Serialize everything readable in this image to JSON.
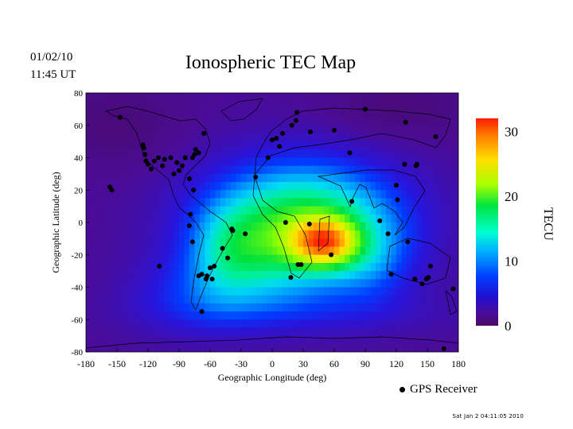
{
  "header": {
    "date": "01/02/10",
    "time": "11:45 UT",
    "title": "Ionospheric TEC Map"
  },
  "footer": {
    "timestamp": "Sat Jan  2 04:11:05 2010"
  },
  "legend": {
    "marker_label": "GPS Receiver"
  },
  "colorbar": {
    "label": "TECU",
    "ticks": [
      "30",
      "20",
      "10",
      "0"
    ],
    "range": [
      0,
      32
    ]
  },
  "chart_data": {
    "type": "heatmap",
    "title": "Ionospheric TEC Map",
    "xlabel": "Geographic Longitude (deg)",
    "ylabel": "Geographic Latitude (deg)",
    "xlim": [
      -180,
      180
    ],
    "ylim": [
      -80,
      80
    ],
    "x_ticks": [
      -180,
      -150,
      -120,
      -90,
      -60,
      -30,
      0,
      30,
      60,
      90,
      120,
      150,
      180
    ],
    "y_ticks": [
      80,
      60,
      40,
      20,
      0,
      -20,
      -40,
      -60,
      -80
    ],
    "colorbar_label": "TECU",
    "colorbar_ticks": [
      30,
      20,
      10,
      0
    ],
    "value_range": [
      0,
      32
    ],
    "tec_peak": {
      "lon": 50,
      "lat": -10,
      "value": 31
    },
    "series": [
      {
        "name": "GPS Receiver",
        "type": "scatter",
        "points": [
          [
            -147,
            65
          ],
          [
            -125,
            48
          ],
          [
            -124,
            46
          ],
          [
            -123,
            42
          ],
          [
            -122,
            38
          ],
          [
            -120,
            36
          ],
          [
            -117,
            33
          ],
          [
            -114,
            38
          ],
          [
            -110,
            40
          ],
          [
            -106,
            35
          ],
          [
            -104,
            39
          ],
          [
            -98,
            40
          ],
          [
            -95,
            30
          ],
          [
            -92,
            37
          ],
          [
            -90,
            32
          ],
          [
            -87,
            35
          ],
          [
            -84,
            40
          ],
          [
            -80,
            27
          ],
          [
            -77,
            40
          ],
          [
            -75,
            42
          ],
          [
            -74,
            45
          ],
          [
            -71,
            43
          ],
          [
            -66,
            55
          ],
          [
            -76,
            20
          ],
          [
            -79,
            5
          ],
          [
            -80,
            -2
          ],
          [
            -77,
            -12
          ],
          [
            -71,
            -33
          ],
          [
            -68,
            -32
          ],
          [
            -64,
            -35
          ],
          [
            -58,
            -35
          ],
          [
            -56,
            -27
          ],
          [
            -48,
            -16
          ],
          [
            -43,
            -22
          ],
          [
            -38,
            -5
          ],
          [
            -155,
            20
          ],
          [
            -157,
            22
          ],
          [
            -109,
            -27
          ],
          [
            -63,
            -33
          ],
          [
            -60,
            -28
          ],
          [
            -16,
            28
          ],
          [
            -4,
            40
          ],
          [
            0,
            51
          ],
          [
            4,
            52
          ],
          [
            7,
            47
          ],
          [
            10,
            55
          ],
          [
            19,
            60
          ],
          [
            23,
            63
          ],
          [
            24,
            68
          ],
          [
            37,
            56
          ],
          [
            60,
            57
          ],
          [
            75,
            43
          ],
          [
            25,
            -26
          ],
          [
            18,
            -34
          ],
          [
            28,
            -26
          ],
          [
            13,
            0
          ],
          [
            36,
            -1
          ],
          [
            57,
            -20
          ],
          [
            77,
            13
          ],
          [
            104,
            1
          ],
          [
            115,
            -32
          ],
          [
            131,
            -12
          ],
          [
            138,
            -35
          ],
          [
            145,
            -38
          ],
          [
            149,
            -35
          ],
          [
            151,
            -34
          ],
          [
            153,
            -27
          ],
          [
            175,
            -41
          ],
          [
            121,
            14
          ],
          [
            128,
            36
          ],
          [
            140,
            36
          ],
          [
            139,
            35
          ],
          [
            158,
            53
          ],
          [
            129,
            62
          ],
          [
            90,
            70
          ],
          [
            -68,
            -55
          ],
          [
            120,
            23
          ],
          [
            112,
            -7
          ],
          [
            -26,
            -7
          ],
          [
            -39,
            -4
          ],
          [
            166,
            -78
          ]
        ]
      }
    ]
  }
}
